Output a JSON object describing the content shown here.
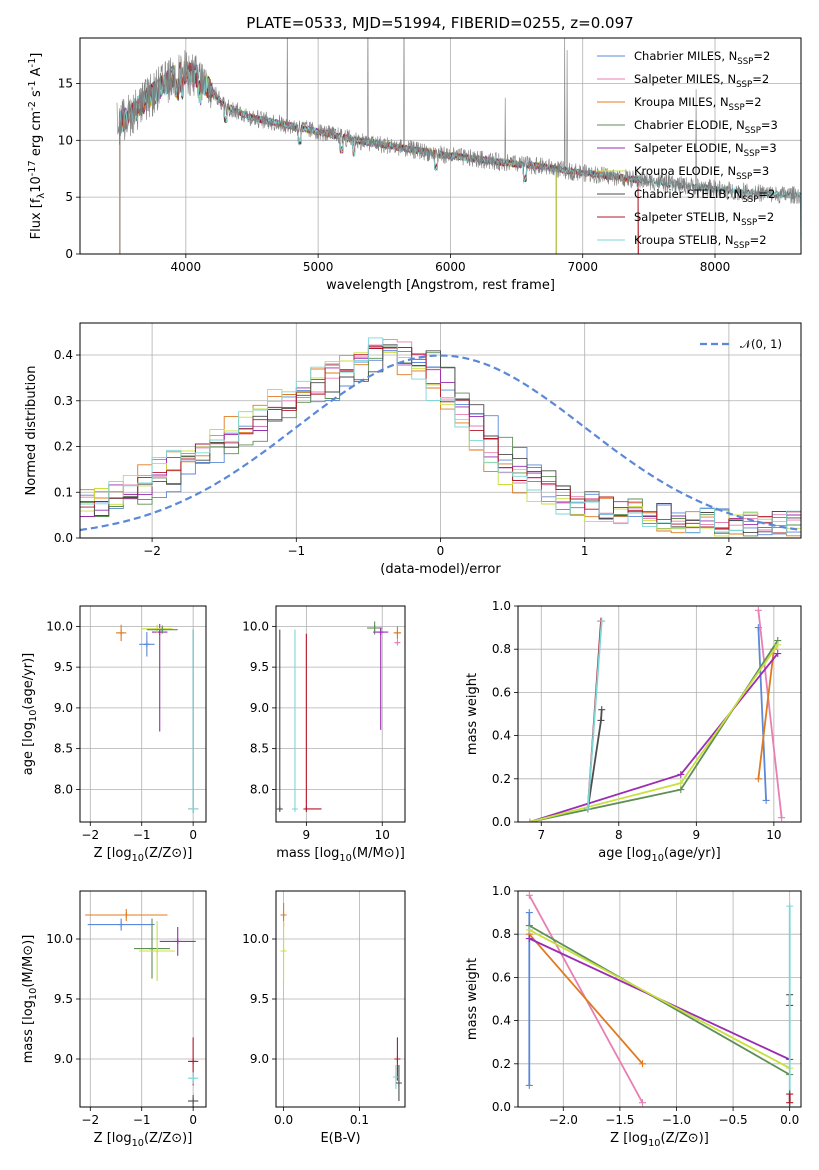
{
  "title": "PLATE=0533, MJD=51994, FIBERID=0255, z=0.097",
  "colors": {
    "Chabrier MILES": "#5b88d8",
    "Salpeter MILES": "#e87fb3",
    "Kroupa MILES": "#e07a20",
    "Chabrier ELODIE": "#5e8f55",
    "Salpeter ELODIE": "#9a2db2",
    "Kroupa ELODIE": "#c8e03c",
    "Chabrier STELIB": "#4d4d4d",
    "Salpeter STELIB": "#b2182b",
    "Kroupa STELIB": "#7fd6d6",
    "data": "#808080",
    "normal": "#5b88d8"
  },
  "chart_data": [
    {
      "id": "spectrum",
      "type": "line",
      "xlabel": "wavelength [Angstrom, rest frame]",
      "ylabel": "Flux [f_λ10^-17 erg cm^-2 s^-1 A^-1]",
      "xlim": [
        3200,
        8650
      ],
      "ylim": [
        0,
        19
      ],
      "xticks": [
        4000,
        5000,
        6000,
        7000,
        8000
      ],
      "yticks": [
        0,
        5,
        10,
        15
      ],
      "legend_position": "upper-right",
      "legend": [
        "Chabrier MILES, N_SSP=2",
        "Salpeter MILES, N_SSP=2",
        "Kroupa MILES, N_SSP=2",
        "Chabrier ELODIE, N_SSP=3",
        "Salpeter ELODIE, N_SSP=3",
        "Kroupa ELODIE, N_SSP=3",
        "Chabrier STELIB, N_SSP=2",
        "Salpeter STELIB, N_SSP=2",
        "Kroupa STELIB, N_SSP=2"
      ],
      "continuum": {
        "wavelength": [
          3500,
          3600,
          3700,
          3800,
          3900,
          4000,
          4100,
          4300,
          4500,
          4700,
          4900,
          5100,
          5300,
          5500,
          5700,
          5900,
          6100,
          6300,
          6500,
          6700,
          6900,
          7100,
          7300,
          7500,
          7700,
          7900,
          8100,
          8300,
          8500
        ],
        "flux": [
          11.5,
          12.5,
          13.5,
          14.6,
          15.5,
          16.0,
          15.5,
          13.0,
          12.0,
          11.5,
          11.0,
          10.5,
          10.0,
          9.6,
          9.2,
          8.8,
          8.5,
          8.2,
          7.9,
          7.7,
          7.3,
          7.0,
          6.7,
          6.4,
          6.1,
          5.9,
          5.6,
          5.4,
          5.2
        ]
      },
      "model_ranges": {
        "Chabrier MILES": [
          3500,
          7420
        ],
        "Salpeter MILES": [
          3500,
          7420
        ],
        "Kroupa MILES": [
          3500,
          7420
        ],
        "Chabrier ELODIE": [
          3500,
          6800
        ],
        "Salpeter ELODIE": [
          3500,
          6800
        ],
        "Kroupa ELODIE": [
          3500,
          6800
        ],
        "Chabrier STELIB": [
          3500,
          8650
        ],
        "Salpeter STELIB": [
          3500,
          7420
        ],
        "Kroupa STELIB": [
          3500,
          8650
        ]
      },
      "data_range": [
        3480,
        8650
      ]
    },
    {
      "id": "residuals",
      "type": "line",
      "xlabel": "(data-model)/error",
      "ylabel": "Normed distribution",
      "xlim": [
        -2.5,
        2.5
      ],
      "ylim": [
        0,
        0.47
      ],
      "xticks": [
        -2,
        -1,
        0,
        1,
        2
      ],
      "yticks": [
        0.0,
        0.1,
        0.2,
        0.3,
        0.4
      ],
      "legend": [
        "𝒩(0, 1)"
      ],
      "legend_position": "upper-right",
      "bins": 50,
      "histogram_envelope": [
        0.07,
        0.08,
        0.09,
        0.1,
        0.11,
        0.13,
        0.15,
        0.17,
        0.19,
        0.2,
        0.22,
        0.24,
        0.26,
        0.28,
        0.3,
        0.31,
        0.33,
        0.35,
        0.37,
        0.39,
        0.4,
        0.41,
        0.4,
        0.38,
        0.35,
        0.32,
        0.28,
        0.24,
        0.2,
        0.17,
        0.14,
        0.12,
        0.1,
        0.09,
        0.08,
        0.07,
        0.06,
        0.06,
        0.05,
        0.05,
        0.05,
        0.04,
        0.04,
        0.04,
        0.04,
        0.03,
        0.03,
        0.03,
        0.03,
        0.03
      ]
    },
    {
      "id": "age-vs-Z",
      "type": "scatter",
      "xlabel": "Z [log10(Z/Z⊙)]",
      "ylabel": "age  [log10(age/yr)]",
      "xlim": [
        -2.2,
        0.25
      ],
      "ylim": [
        7.6,
        10.25
      ],
      "xticks": [
        -2,
        -1,
        0
      ],
      "yticks": [
        8.0,
        8.5,
        9.0,
        9.5,
        10.0
      ],
      "points": [
        {
          "model": "Chabrier MILES",
          "x": -0.9,
          "y": 9.78,
          "xerr": [
            0.15,
            0.15
          ],
          "yerr": [
            0.15,
            0.15
          ]
        },
        {
          "model": "Kroupa MILES",
          "x": -1.4,
          "y": 9.92,
          "xerr": [
            0.1,
            0.1
          ],
          "yerr": [
            0.1,
            0.1
          ]
        },
        {
          "model": "Salpeter ELODIE",
          "x": -0.65,
          "y": 9.93,
          "xerr": [
            0.15,
            0.15
          ],
          "yerr": [
            1.22,
            0.1
          ]
        },
        {
          "model": "Kroupa ELODIE",
          "x": -0.7,
          "y": 9.97,
          "xerr": [
            0.3,
            0.3
          ],
          "yerr": [
            0.05,
            0.05
          ]
        },
        {
          "model": "Chabrier ELODIE",
          "x": -0.6,
          "y": 9.96,
          "xerr": [
            0.3,
            0.3
          ],
          "yerr": [
            0.05,
            0.05
          ]
        },
        {
          "model": "Chabrier STELIB",
          "x": 0.0,
          "y": 7.76,
          "xerr": [
            0.1,
            0.1
          ],
          "yerr": [
            0.05,
            2.2
          ]
        },
        {
          "model": "Kroupa STELIB",
          "x": 0.0,
          "y": 7.76,
          "xerr": [
            0.1,
            0.1
          ],
          "yerr": [
            0.05,
            2.2
          ]
        }
      ]
    },
    {
      "id": "age-vs-mass",
      "type": "scatter",
      "xlabel": "mass [log10(M/M⊙)]",
      "ylabel": "",
      "xlim": [
        8.6,
        10.3
      ],
      "ylim": [
        7.6,
        10.25
      ],
      "xticks": [
        9,
        10
      ],
      "yticks": [
        8.0,
        8.5,
        9.0,
        9.5,
        10.0
      ],
      "points": [
        {
          "model": "Chabrier STELIB",
          "x": 8.65,
          "y": 7.76,
          "xerr": [
            0.02,
            0.02
          ],
          "yerr": [
            0.02,
            2.2
          ]
        },
        {
          "model": "Kroupa STELIB",
          "x": 8.85,
          "y": 7.76,
          "xerr": [
            0.02,
            0.02
          ],
          "yerr": [
            0.02,
            2.2
          ]
        },
        {
          "model": "Salpeter STELIB",
          "x": 9.0,
          "y": 7.76,
          "xerr": [
            0.02,
            0.2
          ],
          "yerr": [
            0.02,
            2.15
          ]
        },
        {
          "model": "Chabrier ELODIE",
          "x": 9.9,
          "y": 9.98,
          "xerr": [
            0.1,
            0.1
          ],
          "yerr": [
            0.08,
            0.08
          ]
        },
        {
          "model": "Salpeter ELODIE",
          "x": 9.98,
          "y": 9.93,
          "xerr": [
            0.1,
            0.1
          ],
          "yerr": [
            1.2,
            0.05
          ]
        },
        {
          "model": "Kroupa MILES",
          "x": 10.2,
          "y": 9.92,
          "xerr": [
            0.05,
            0.05
          ],
          "yerr": [
            0.08,
            0.08
          ]
        },
        {
          "model": "Salpeter MILES",
          "x": 10.2,
          "y": 9.8,
          "xerr": [
            0.03,
            0.03
          ],
          "yerr": [
            0.02,
            0.02
          ]
        }
      ]
    },
    {
      "id": "weight-vs-age",
      "type": "line",
      "xlabel": "age  [log10(age/yr)]",
      "ylabel": "mass weight",
      "xlim": [
        6.7,
        10.35
      ],
      "ylim": [
        0,
        1
      ],
      "xticks": [
        7,
        8,
        9,
        10
      ],
      "yticks": [
        0.0,
        0.2,
        0.4,
        0.6,
        0.8,
        1.0
      ],
      "series": [
        {
          "model": "Chabrier MILES",
          "x": [
            9.8,
            9.9
          ],
          "y": [
            0.9,
            0.1
          ]
        },
        {
          "model": "Salpeter MILES",
          "x": [
            9.8,
            10.1
          ],
          "y": [
            0.98,
            0.02
          ]
        },
        {
          "model": "Kroupa MILES",
          "x": [
            9.8,
            10.0
          ],
          "y": [
            0.2,
            0.8
          ]
        },
        {
          "model": "Chabrier ELODIE",
          "x": [
            6.85,
            8.8,
            10.05
          ],
          "y": [
            0.0,
            0.15,
            0.84
          ]
        },
        {
          "model": "Salpeter ELODIE",
          "x": [
            6.85,
            8.8,
            10.05
          ],
          "y": [
            0.0,
            0.22,
            0.78
          ]
        },
        {
          "model": "Kroupa ELODIE",
          "x": [
            6.85,
            8.8,
            10.05
          ],
          "y": [
            0.0,
            0.18,
            0.82
          ]
        },
        {
          "model": "Chabrier STELIB",
          "x": [
            7.6,
            7.77,
            7.78
          ],
          "y": [
            0.06,
            0.47,
            0.52
          ]
        },
        {
          "model": "Salpeter STELIB",
          "x": [
            7.6,
            7.77
          ],
          "y": [
            0.06,
            0.93
          ]
        },
        {
          "model": "Kroupa STELIB",
          "x": [
            7.6,
            7.78
          ],
          "y": [
            0.06,
            0.93
          ]
        }
      ]
    },
    {
      "id": "mass-vs-Z",
      "type": "scatter",
      "xlabel": "Z [log10(Z/Z⊙)]",
      "ylabel": "mass [log10(M/M⊙)]",
      "xlim": [
        -2.2,
        0.25
      ],
      "ylim": [
        8.6,
        10.4
      ],
      "xticks": [
        -2,
        -1,
        0
      ],
      "yticks": [
        9.0,
        9.5,
        10.0
      ],
      "points": [
        {
          "model": "Kroupa MILES",
          "x": -1.3,
          "y": 10.2,
          "xerr": [
            0.8,
            0.8
          ],
          "yerr": [
            0.05,
            0.05
          ]
        },
        {
          "model": "Chabrier MILES",
          "x": -1.4,
          "y": 10.12,
          "xerr": [
            0.65,
            0.65
          ],
          "yerr": [
            0.05,
            0.05
          ]
        },
        {
          "model": "Salpeter ELODIE",
          "x": -0.3,
          "y": 9.98,
          "xerr": [
            0.35,
            0.35
          ],
          "yerr": [
            0.12,
            0.12
          ]
        },
        {
          "model": "Chabrier ELODIE",
          "x": -0.8,
          "y": 9.92,
          "xerr": [
            0.35,
            0.35
          ],
          "yerr": [
            0.25,
            0.25
          ]
        },
        {
          "model": "Kroupa ELODIE",
          "x": -0.7,
          "y": 9.9,
          "xerr": [
            0.35,
            0.35
          ],
          "yerr": [
            0.25,
            0.25
          ]
        },
        {
          "model": "Salpeter STELIB",
          "x": 0.0,
          "y": 8.98,
          "xerr": [
            0.1,
            0.1
          ],
          "yerr": [
            0.2,
            0.2
          ]
        },
        {
          "model": "Kroupa STELIB",
          "x": 0.0,
          "y": 8.84,
          "xerr": [
            0.1,
            0.1
          ],
          "yerr": [
            0.05,
            0.05
          ]
        },
        {
          "model": "Chabrier STELIB",
          "x": 0.0,
          "y": 8.65,
          "xerr": [
            0.1,
            0.1
          ],
          "yerr": [
            0.05,
            0.05
          ]
        }
      ]
    },
    {
      "id": "mass-vs-EBV",
      "type": "scatter",
      "xlabel": "E(B-V)",
      "ylabel": "",
      "xlim": [
        -0.01,
        0.16
      ],
      "ylim": [
        8.6,
        10.4
      ],
      "xticks": [
        0.0,
        0.1
      ],
      "yticks": [
        9.0,
        9.5,
        10.0
      ],
      "points": [
        {
          "model": "Kroupa MILES",
          "x": 0.0,
          "y": 10.2,
          "yerr": [
            0.1,
            0.1
          ]
        },
        {
          "model": "Kroupa ELODIE",
          "x": 0.0,
          "y": 9.9,
          "yerr": [
            0.25,
            0.25
          ]
        },
        {
          "model": "Salpeter STELIB",
          "x": 0.15,
          "y": 9.0,
          "yerr": [
            0.18,
            0.18
          ]
        },
        {
          "model": "Kroupa STELIB",
          "x": 0.148,
          "y": 8.85,
          "yerr": [
            0.1,
            0.1
          ]
        },
        {
          "model": "Chabrier STELIB",
          "x": 0.152,
          "y": 8.8,
          "yerr": [
            0.15,
            0.15
          ]
        }
      ]
    },
    {
      "id": "weight-vs-Z",
      "type": "line",
      "xlabel": "Z [log10(Z/Z⊙)]",
      "ylabel": "mass weight",
      "xlim": [
        -2.4,
        0.1
      ],
      "ylim": [
        0,
        1
      ],
      "xticks": [
        -2.0,
        -1.5,
        -1.0,
        -0.5,
        0.0
      ],
      "yticks": [
        0.0,
        0.2,
        0.4,
        0.6,
        0.8,
        1.0
      ],
      "series": [
        {
          "model": "Chabrier MILES",
          "x": [
            -2.3,
            -2.3
          ],
          "y": [
            0.9,
            0.1
          ]
        },
        {
          "model": "Salpeter MILES",
          "x": [
            -2.3,
            -1.3
          ],
          "y": [
            0.98,
            0.02
          ]
        },
        {
          "model": "Kroupa MILES",
          "x": [
            -2.3,
            -1.3
          ],
          "y": [
            0.8,
            0.2
          ]
        },
        {
          "model": "Chabrier ELODIE",
          "x": [
            -2.3,
            0.0
          ],
          "y": [
            0.84,
            0.15
          ]
        },
        {
          "model": "Salpeter ELODIE",
          "x": [
            -2.3,
            0.0
          ],
          "y": [
            0.78,
            0.22
          ]
        },
        {
          "model": "Kroupa ELODIE",
          "x": [
            -2.3,
            0.0
          ],
          "y": [
            0.82,
            0.18
          ]
        },
        {
          "model": "Chabrier STELIB",
          "x": [
            0.0,
            0.0
          ],
          "y": [
            0.52,
            0.47
          ]
        },
        {
          "model": "Kroupa STELIB",
          "x": [
            0.0,
            0.0
          ],
          "y": [
            0.93,
            0.0
          ]
        },
        {
          "model": "Salpeter STELIB",
          "x": [
            0.0,
            0.0
          ],
          "y": [
            0.06,
            0.02
          ]
        }
      ]
    }
  ]
}
